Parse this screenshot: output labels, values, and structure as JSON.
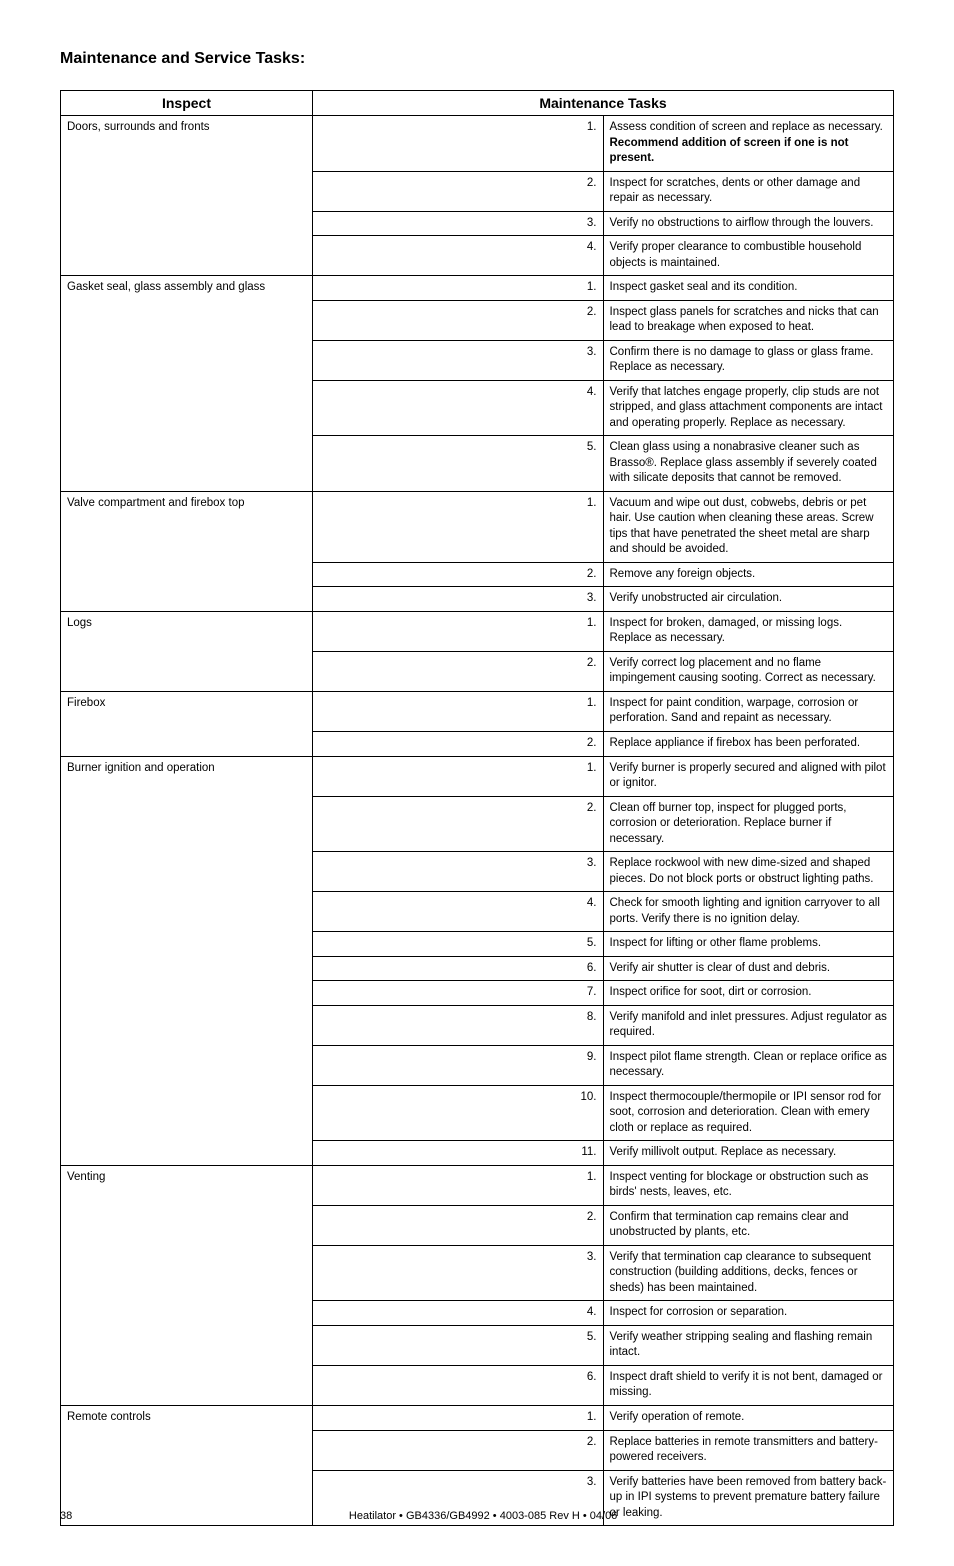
{
  "title": "Maintenance and Service Tasks:",
  "headers": {
    "inspect": "Inspect",
    "tasks": "Maintenance Tasks"
  },
  "sections": [
    {
      "inspect": "Doors, surrounds and fronts",
      "tasks": [
        {
          "n": "1.",
          "html": "Assess condition of screen and replace as necessary. <span class='bold'>Recommend addition of screen if one is not present.</span>"
        },
        {
          "n": "2.",
          "text": "Inspect for scratches, dents or other damage and repair as necessary."
        },
        {
          "n": "3.",
          "text": "Verify no obstructions to airflow through the louvers."
        },
        {
          "n": "4.",
          "text": "Verify proper clearance to combustible household objects is maintained."
        }
      ]
    },
    {
      "inspect": "Gasket seal, glass assembly and glass",
      "tasks": [
        {
          "n": "1.",
          "text": "Inspect gasket seal and its condition."
        },
        {
          "n": "2.",
          "text": "Inspect glass panels for scratches and nicks that can lead to breakage when exposed to heat."
        },
        {
          "n": "3.",
          "text": "Confirm there is no damage to glass or glass frame. Replace as necessary."
        },
        {
          "n": "4.",
          "text": "Verify that latches engage properly, clip studs are not stripped, and glass attachment components are intact and operating properly. Replace as necessary."
        },
        {
          "n": "5.",
          "text": "Clean glass using a nonabrasive cleaner such as Brasso®. Replace glass assembly if severely coated with silicate deposits that cannot be removed."
        }
      ]
    },
    {
      "inspect": "Valve compartment and firebox top",
      "tasks": [
        {
          "n": "1.",
          "text": "Vacuum and wipe out dust, cobwebs, debris or pet hair. Use caution when cleaning these areas. Screw tips that have penetrated the sheet metal are sharp and should be avoided."
        },
        {
          "n": "2.",
          "text": "Remove any foreign objects."
        },
        {
          "n": "3.",
          "text": "Verify unobstructed air circulation."
        }
      ]
    },
    {
      "inspect": "Logs",
      "tasks": [
        {
          "n": "1.",
          "text": "Inspect for broken, damaged, or missing logs. Replace as necessary."
        },
        {
          "n": "2.",
          "text": "Verify correct log placement and no flame impingement causing sooting. Correct as necessary."
        }
      ]
    },
    {
      "inspect": "Firebox",
      "tasks": [
        {
          "n": "1.",
          "text": "Inspect for paint condition, warpage, corrosion or perforation. Sand and repaint as necessary."
        },
        {
          "n": "2.",
          "text": "Replace appliance if firebox has been perforated."
        }
      ]
    },
    {
      "inspect": "Burner ignition and operation",
      "tasks": [
        {
          "n": "1.",
          "text": "Verify burner is properly secured and aligned with pilot or ignitor."
        },
        {
          "n": "2.",
          "text": "Clean off burner top, inspect for plugged ports, corrosion or deterioration. Replace burner if necessary."
        },
        {
          "n": "3.",
          "text": "Replace rockwool with new dime-sized and shaped pieces. Do not block ports or obstruct lighting paths."
        },
        {
          "n": "4.",
          "text": "Check for smooth lighting and ignition carryover to all ports. Verify there is no ignition delay."
        },
        {
          "n": "5.",
          "text": "Inspect for lifting or other flame problems."
        },
        {
          "n": "6.",
          "text": "Verify air shutter is clear of dust and debris."
        },
        {
          "n": "7.",
          "text": "Inspect orifice for soot, dirt or corrosion."
        },
        {
          "n": "8.",
          "text": "Verify manifold and inlet pressures. Adjust regulator as required."
        },
        {
          "n": "9.",
          "text": "Inspect pilot flame strength. Clean or replace orifice as necessary."
        },
        {
          "n": "10.",
          "text": "Inspect thermocouple/thermopile or IPI sensor rod for soot, corrosion and deterioration. Clean with emery cloth or replace as required."
        },
        {
          "n": "11.",
          "text": "Verify millivolt output. Replace as necessary."
        }
      ]
    },
    {
      "inspect": "Venting",
      "tasks": [
        {
          "n": "1.",
          "text": "Inspect venting for blockage or obstruction such as birds' nests, leaves, etc."
        },
        {
          "n": "2.",
          "text": "Confirm that termination cap remains clear and unobstructed by plants, etc."
        },
        {
          "n": "3.",
          "text": "Verify that termination cap clearance to subsequent construction (building additions, decks, fences or sheds) has been maintained."
        },
        {
          "n": "4.",
          "text": "Inspect for corrosion or separation."
        },
        {
          "n": "5.",
          "text": "Verify weather stripping sealing and flashing remain intact."
        },
        {
          "n": "6.",
          "text": "Inspect draft shield to verify it is not bent, damaged or missing."
        }
      ]
    },
    {
      "inspect": "Remote controls",
      "tasks": [
        {
          "n": "1.",
          "text": "Verify operation of remote."
        },
        {
          "n": "2.",
          "text": "Replace batteries in remote transmitters and battery-powered receivers."
        },
        {
          "n": "3.",
          "text": "Verify batteries have been removed from battery back-up in IPI systems to prevent premature battery failure or leaking."
        }
      ]
    }
  ],
  "footer": {
    "page": "38",
    "text": "Heatilator • GB4336/GB4992 • 4003-085 Rev H • 04/06"
  }
}
